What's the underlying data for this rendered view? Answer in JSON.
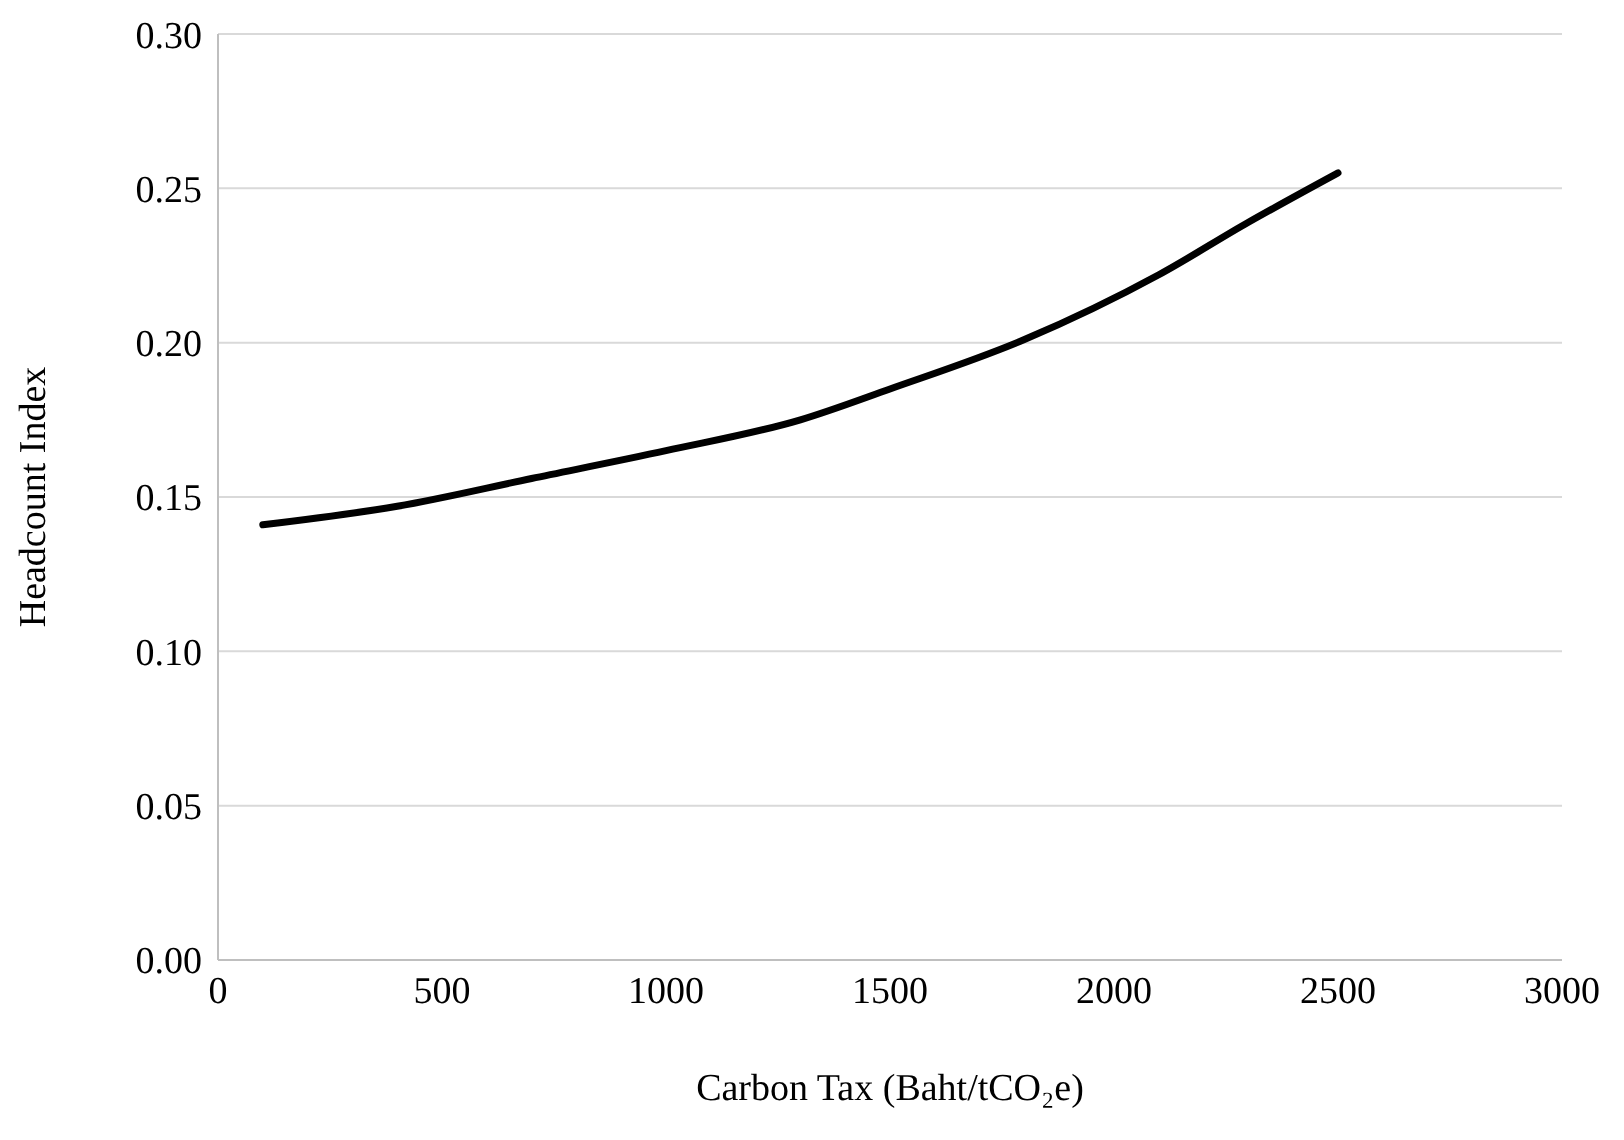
{
  "chart_data": {
    "type": "line",
    "xlabel": "Carbon Tax (Baht/tCO₂e)",
    "ylabel": "Headcount Index",
    "x": [
      100,
      400,
      700,
      1000,
      1300,
      1500,
      1800,
      2100,
      2300,
      2500
    ],
    "series": [
      {
        "color": "#000000",
        "values": [
          0.141,
          0.147,
          0.156,
          0.165,
          0.175,
          0.185,
          0.201,
          0.222,
          0.239,
          0.255
        ]
      }
    ],
    "xlim": [
      0,
      3000
    ],
    "xticks": [
      0,
      500,
      1000,
      1500,
      2000,
      2500,
      3000
    ],
    "ylim": [
      0,
      0.3
    ],
    "yticks": [
      {
        "value": 0,
        "label": "0.00"
      },
      {
        "value": 0.05,
        "label": "0.05"
      },
      {
        "value": 0.1,
        "label": "0.10"
      },
      {
        "value": 0.15,
        "label": "0.15"
      },
      {
        "value": 0.2,
        "label": "0.20"
      },
      {
        "value": 0.25,
        "label": "0.25"
      },
      {
        "value": 0.3,
        "label": "0.30"
      }
    ],
    "grid": "y",
    "marker": "none",
    "line_style": "solid",
    "legend": false
  }
}
